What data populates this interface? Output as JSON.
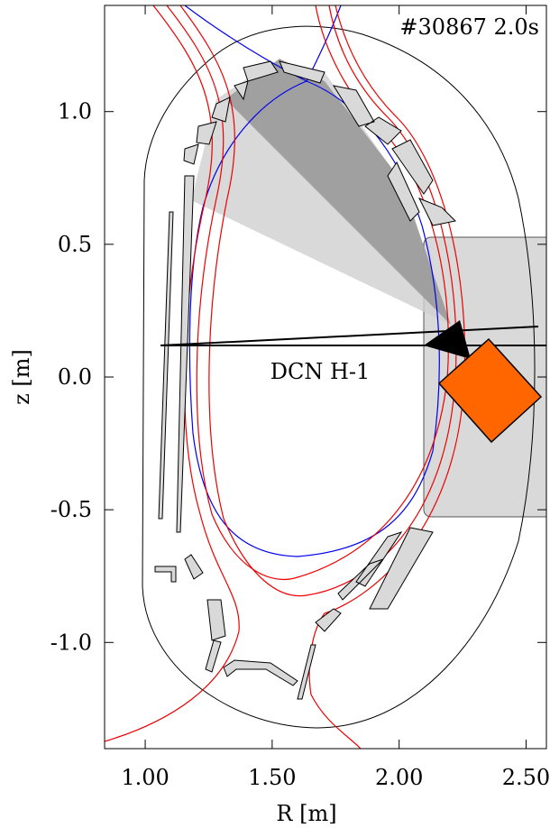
{
  "chart_data": {
    "type": "cross-section",
    "title": "#30867 2.0s",
    "annotations": [
      "DCN H-1"
    ],
    "xlabel": "R [m]",
    "ylabel": "z [m]",
    "xlim": [
      0.84,
      2.58
    ],
    "ylim": [
      -1.4,
      1.4
    ],
    "xticks": [
      {
        "value": 1,
        "label": "1.00"
      },
      {
        "value": 1.5,
        "label": "1.50"
      },
      {
        "value": 2,
        "label": "2.00"
      },
      {
        "value": 2.5,
        "label": "2.50"
      }
    ],
    "yticks": [
      {
        "value": 1,
        "label": "1.0"
      },
      {
        "value": 0.5,
        "label": "0.5"
      },
      {
        "value": 0,
        "label": "0.0"
      },
      {
        "value": -0.5,
        "label": "-0.5"
      },
      {
        "value": -1,
        "label": "-1.0"
      }
    ]
  }
}
